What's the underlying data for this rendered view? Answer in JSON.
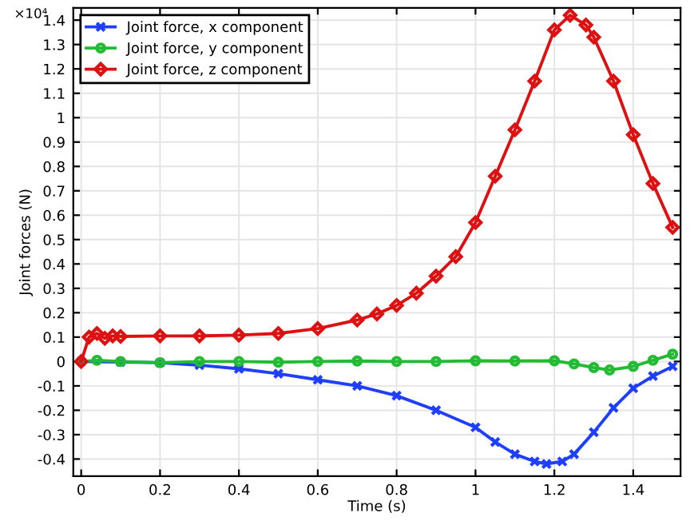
{
  "chart_data": {
    "type": "line",
    "xlabel": "Time (s)",
    "ylabel": "Joint forces (N)",
    "annotations": [
      "×10⁴"
    ],
    "xlim": [
      -0.02,
      1.52
    ],
    "xticks": [
      0,
      0.2,
      0.4,
      0.6,
      0.8,
      1,
      1.2,
      1.4
    ],
    "ylim": [
      -0.47,
      1.45
    ],
    "yticks": [
      -0.4,
      -0.3,
      -0.2,
      -0.1,
      0,
      0.1,
      0.2,
      0.3,
      0.4,
      0.5,
      0.6,
      0.7,
      0.8,
      0.9,
      1,
      1.1,
      1.2,
      1.3,
      1.4
    ],
    "grid": true,
    "legend": "top left",
    "series": [
      {
        "name": "Joint force, x component",
        "color": "#1f3fff",
        "marker": "cross",
        "x": [
          0,
          0.1,
          0.2,
          0.3,
          0.4,
          0.5,
          0.6,
          0.7,
          0.8,
          0.9,
          1.0,
          1.05,
          1.1,
          1.15,
          1.18,
          1.22,
          1.25,
          1.3,
          1.35,
          1.4,
          1.45,
          1.5
        ],
        "values": [
          0,
          -0.002,
          -0.005,
          -0.015,
          -0.03,
          -0.05,
          -0.075,
          -0.1,
          -0.14,
          -0.2,
          -0.27,
          -0.33,
          -0.38,
          -0.41,
          -0.42,
          -0.41,
          -0.38,
          -0.29,
          -0.19,
          -0.11,
          -0.06,
          -0.02
        ]
      },
      {
        "name": "Joint force, y component",
        "color": "#22bb33",
        "marker": "circle",
        "x": [
          0,
          0.04,
          0.1,
          0.2,
          0.3,
          0.4,
          0.5,
          0.6,
          0.7,
          0.8,
          0.9,
          1.0,
          1.1,
          1.2,
          1.25,
          1.3,
          1.34,
          1.4,
          1.45,
          1.5
        ],
        "values": [
          0,
          0.005,
          0,
          -0.005,
          0,
          0,
          -0.003,
          0,
          0.002,
          0,
          0,
          0.003,
          0.002,
          0.003,
          -0.01,
          -0.025,
          -0.035,
          -0.02,
          0.005,
          0.03
        ]
      },
      {
        "name": "Joint force, z component",
        "color": "#dd1111",
        "marker": "diamond",
        "x": [
          0,
          0.02,
          0.04,
          0.06,
          0.08,
          0.1,
          0.2,
          0.3,
          0.4,
          0.5,
          0.6,
          0.7,
          0.75,
          0.8,
          0.85,
          0.9,
          0.95,
          1.0,
          1.05,
          1.1,
          1.15,
          1.2,
          1.24,
          1.28,
          1.3,
          1.35,
          1.4,
          1.45,
          1.5
        ],
        "values": [
          0,
          0.1,
          0.115,
          0.095,
          0.105,
          0.103,
          0.105,
          0.105,
          0.108,
          0.115,
          0.135,
          0.17,
          0.195,
          0.23,
          0.28,
          0.35,
          0.43,
          0.57,
          0.76,
          0.95,
          1.15,
          1.36,
          1.42,
          1.38,
          1.33,
          1.15,
          0.93,
          0.73,
          0.55
        ]
      }
    ]
  }
}
